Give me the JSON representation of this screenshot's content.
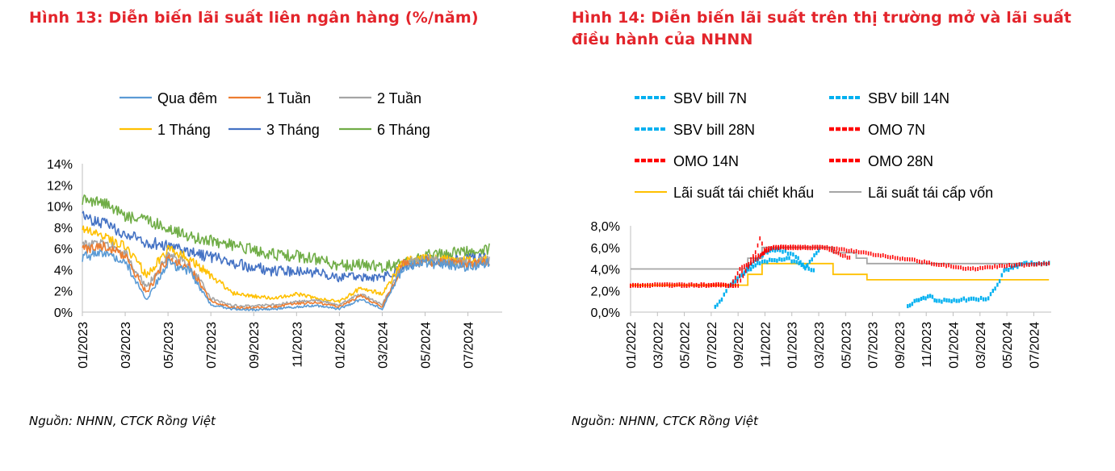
{
  "figure13": {
    "title": "Hình 13: Diễn biến lãi suất liên ngân hàng (%/năm)",
    "source": "Nguồn: NHNN, CTCK Rồng Việt"
  },
  "figure14": {
    "title": "Hình 14: Diễn biến lãi suất trên thị trường mở và lãi suất điều hành của NHNN",
    "source": "Nguồn: NHNN,  CTCK Rồng Việt"
  },
  "chart_data": [
    {
      "type": "line",
      "title": "Hình 13: Diễn biến lãi suất liên ngân hàng (%/năm)",
      "x_tick_labels": [
        "01/2023",
        "03/2023",
        "05/2023",
        "07/2023",
        "09/2023",
        "11/2023",
        "01/2024",
        "03/2024",
        "05/2024",
        "07/2024"
      ],
      "y_tick_labels": [
        "0%",
        "2%",
        "4%",
        "6%",
        "8%",
        "10%",
        "12%",
        "14%"
      ],
      "ylim": [
        0,
        14
      ],
      "x_range": [
        "2023-01",
        "2024-08"
      ],
      "grid": false,
      "legend_position": "top",
      "x": [
        "2023-01",
        "2023-02",
        "2023-03",
        "2023-04",
        "2023-05",
        "2023-06",
        "2023-07",
        "2023-08",
        "2023-09",
        "2023-10",
        "2023-11",
        "2023-12",
        "2024-01",
        "2024-02",
        "2024-03",
        "2024-04",
        "2024-05",
        "2024-06",
        "2024-07",
        "2024-08"
      ],
      "series": [
        {
          "name": "Qua đêm",
          "color": "#5b9bd5",
          "values": [
            5.2,
            5.6,
            4.8,
            1.2,
            4.6,
            3.9,
            0.7,
            0.3,
            0.2,
            0.3,
            0.5,
            0.6,
            0.3,
            1.2,
            0.3,
            4.3,
            4.6,
            4.5,
            4.2,
            4.7
          ]
        },
        {
          "name": "1 Tuần",
          "color": "#ed7d31",
          "values": [
            5.9,
            6.2,
            5.3,
            1.8,
            5.1,
            4.3,
            1.0,
            0.4,
            0.4,
            0.5,
            0.8,
            0.9,
            0.5,
            1.5,
            0.5,
            4.5,
            4.8,
            4.7,
            4.5,
            4.8
          ]
        },
        {
          "name": "2 Tuần",
          "color": "#a5a5a5",
          "values": [
            6.3,
            6.6,
            5.6,
            2.3,
            5.4,
            4.5,
            1.3,
            0.6,
            0.6,
            0.7,
            1.0,
            1.1,
            0.7,
            1.7,
            0.7,
            4.6,
            4.9,
            4.8,
            4.6,
            4.9
          ]
        },
        {
          "name": "1 Tháng",
          "color": "#ffc000",
          "values": [
            7.8,
            7.2,
            6.2,
            3.5,
            5.9,
            5.1,
            3.5,
            1.8,
            1.5,
            1.3,
            1.7,
            1.3,
            1.0,
            2.3,
            1.7,
            4.8,
            5.0,
            4.9,
            4.8,
            5.0
          ]
        },
        {
          "name": "3 Tháng",
          "color": "#4472c4",
          "values": [
            9.0,
            8.4,
            7.3,
            6.6,
            6.3,
            5.6,
            5.2,
            4.7,
            4.2,
            3.9,
            3.8,
            3.7,
            3.3,
            3.4,
            3.2,
            4.4,
            4.9,
            4.7,
            5.0,
            5.2
          ]
        },
        {
          "name": "6 Tháng",
          "color": "#70ad47",
          "values": [
            10.6,
            10.3,
            9.0,
            8.6,
            8.0,
            7.1,
            6.8,
            6.3,
            5.9,
            5.4,
            5.3,
            5.0,
            4.4,
            4.5,
            4.3,
            4.5,
            5.3,
            5.5,
            5.7,
            6.0
          ]
        }
      ]
    },
    {
      "type": "line",
      "title": "Hình 14: Diễn biến lãi suất trên thị trường mở và lãi suất điều hành của NHNN",
      "x_tick_labels": [
        "01/2022",
        "03/2022",
        "05/2022",
        "07/2022",
        "09/2022",
        "11/2022",
        "01/2023",
        "03/2023",
        "05/2023",
        "07/2023",
        "09/2023",
        "11/2023",
        "01/2024",
        "03/2024",
        "05/2024",
        "07/2024"
      ],
      "y_tick_labels": [
        "0,0%",
        "2,0%",
        "4,0%",
        "6,0%",
        "8,0%"
      ],
      "ylim": [
        0,
        8
      ],
      "x_range": [
        "2022-01",
        "2024-08"
      ],
      "grid": false,
      "legend_position": "top",
      "series": [
        {
          "name": "SBV bill 7N",
          "color": "#00b0f0",
          "style": "dashed",
          "points": [
            [
              "2022-07-10",
              0.4
            ],
            [
              "2022-07-25",
              1.2
            ],
            [
              "2022-08-10",
              2.4
            ],
            [
              "2022-09-10",
              3.5
            ],
            [
              "2022-10-01",
              4.5
            ],
            [
              "2022-11-01",
              5.5
            ],
            [
              "2022-12-05",
              5.8
            ],
            [
              "2023-01-10",
              5.2
            ],
            [
              "2023-02-01",
              4.0
            ],
            [
              "2023-03-01",
              5.8
            ]
          ]
        },
        {
          "name": "SBV bill 14N",
          "color": "#00b0f0",
          "style": "dashed",
          "points": [
            [
              "2023-09-20",
              0.5
            ],
            [
              "2023-10-10",
              1.1
            ],
            [
              "2023-10-25",
              1.3
            ],
            [
              "2023-11-10",
              1.5
            ],
            [
              "2023-11-25",
              1.0
            ],
            [
              "2024-03-20",
              1.3
            ],
            [
              "2024-04-10",
              2.5
            ],
            [
              "2024-04-25",
              3.8
            ],
            [
              "2024-05-15",
              4.2
            ],
            [
              "2024-06-15",
              4.5
            ],
            [
              "2024-08-05",
              4.5
            ]
          ]
        },
        {
          "name": "SBV bill 28N",
          "color": "#00b0f0",
          "style": "dashed",
          "points": [
            [
              "2022-08-20",
              2.7
            ],
            [
              "2022-09-20",
              3.8
            ],
            [
              "2022-10-20",
              4.6
            ],
            [
              "2022-12-20",
              5.0
            ],
            [
              "2023-02-20",
              3.9
            ]
          ]
        },
        {
          "name": "OMO 7N",
          "color": "#ff0000",
          "style": "dashed",
          "points": [
            [
              "2022-01-01",
              2.5
            ],
            [
              "2022-08-15",
              2.5
            ],
            [
              "2022-09-05",
              4.0
            ],
            [
              "2022-09-25",
              4.5
            ],
            [
              "2022-10-10",
              5.5
            ],
            [
              "2022-10-20",
              6.8
            ],
            [
              "2022-10-30",
              5.8
            ],
            [
              "2022-11-10",
              6.0
            ],
            [
              "2023-03-15",
              6.0
            ]
          ]
        },
        {
          "name": "OMO 14N",
          "color": "#ff0000",
          "style": "dashed",
          "points": [
            [
              "2022-01-01",
              2.5
            ],
            [
              "2022-08-25",
              2.5
            ],
            [
              "2022-09-15",
              4.2
            ],
            [
              "2022-10-15",
              5.0
            ],
            [
              "2022-11-15",
              6.0
            ],
            [
              "2023-03-15",
              6.0
            ],
            [
              "2023-04-10",
              5.5
            ],
            [
              "2023-05-10",
              5.0
            ]
          ]
        },
        {
          "name": "OMO 28N",
          "color": "#ff0000",
          "style": "dashed",
          "points": [
            [
              "2022-01-01",
              2.5
            ],
            [
              "2022-09-01",
              2.5
            ],
            [
              "2022-10-05",
              5.0
            ],
            [
              "2022-11-20",
              6.0
            ],
            [
              "2023-03-20",
              6.0
            ],
            [
              "2024-02-10",
              4.0
            ],
            [
              "2024-05-01",
              4.3
            ],
            [
              "2024-08-05",
              4.5
            ]
          ]
        },
        {
          "name": "Lãi suất tái chiết khấu",
          "color": "#ffc000",
          "style": "solid",
          "steps": [
            [
              "2022-01-01",
              2.5
            ],
            [
              "2022-09-23",
              3.5
            ],
            [
              "2022-10-25",
              4.5
            ],
            [
              "2023-04-03",
              3.5
            ],
            [
              "2023-06-19",
              3.0
            ],
            [
              "2024-08-05",
              3.0
            ]
          ]
        },
        {
          "name": "Lãi suất tái cấp vốn",
          "color": "#a5a5a5",
          "style": "solid",
          "steps": [
            [
              "2022-01-01",
              4.0
            ],
            [
              "2022-09-23",
              5.0
            ],
            [
              "2022-10-25",
              6.0
            ],
            [
              "2023-04-03",
              5.5
            ],
            [
              "2023-05-25",
              5.0
            ],
            [
              "2023-06-19",
              4.5
            ],
            [
              "2024-08-05",
              4.5
            ]
          ]
        }
      ]
    }
  ]
}
